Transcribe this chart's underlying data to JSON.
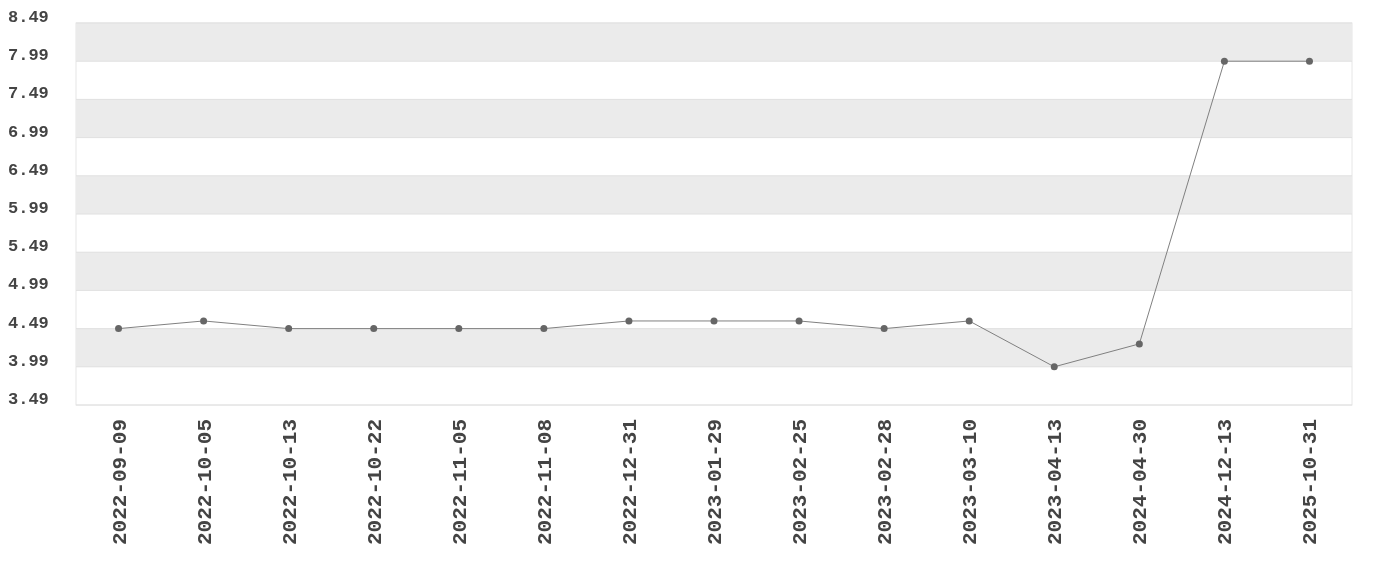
{
  "chart_data": {
    "type": "line",
    "categories": [
      "2022-09-09",
      "2022-10-05",
      "2022-10-13",
      "2022-10-22",
      "2022-11-05",
      "2022-11-08",
      "2022-12-31",
      "2023-01-29",
      "2023-02-25",
      "2023-02-28",
      "2023-03-10",
      "2023-04-13",
      "2024-04-30",
      "2024-12-13",
      "2025-10-31"
    ],
    "series": [
      {
        "color": "#808080",
        "values": [
          4.49,
          4.59,
          4.49,
          4.49,
          4.49,
          4.49,
          4.59,
          4.59,
          4.59,
          4.49,
          4.59,
          3.99,
          4.29,
          7.99,
          7.99
        ]
      }
    ],
    "ylim": [
      3.49,
      8.49
    ],
    "yticks": [
      3.49,
      3.99,
      4.49,
      4.99,
      5.49,
      5.99,
      6.49,
      6.99,
      7.49,
      7.99,
      8.49
    ],
    "grid": "y",
    "marker": "circle",
    "line_style": "solid"
  }
}
